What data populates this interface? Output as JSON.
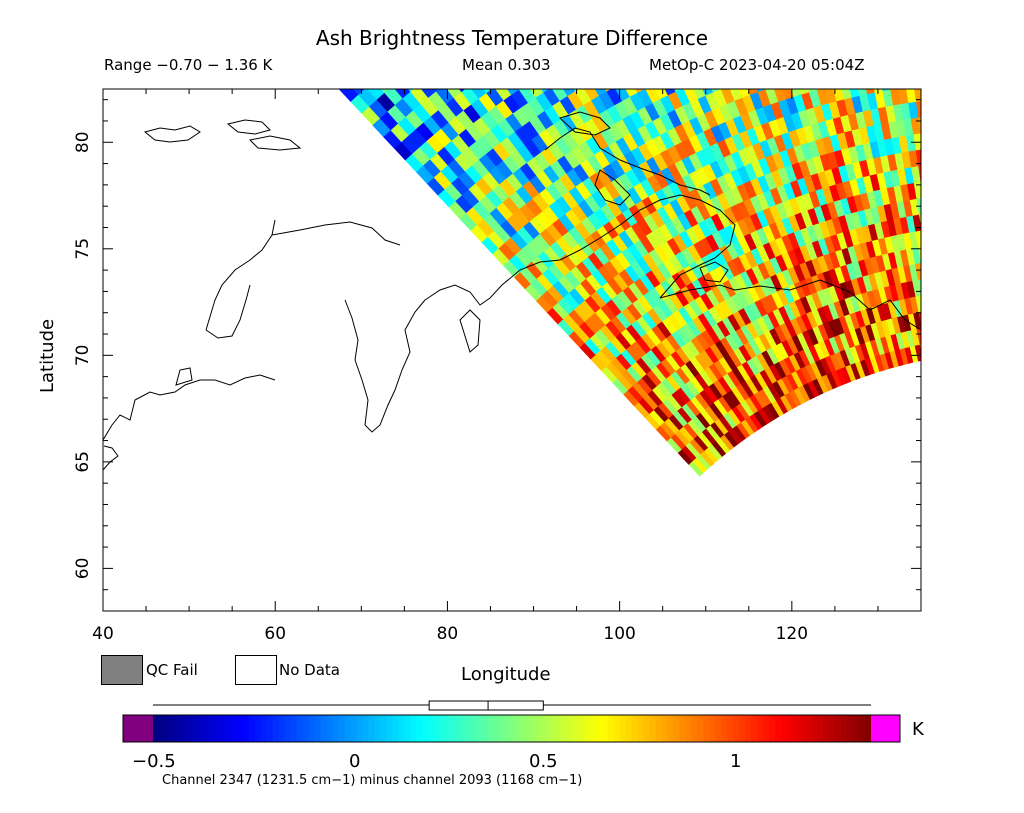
{
  "chart_data": {
    "type": "heatmap",
    "title": "Ash Brightness Temperature Difference",
    "subtitle_range": "Range −0.70 − 1.36 K",
    "subtitle_mean": "Mean 0.303",
    "subtitle_satellite": "MetOp-C 2023-04-20 05:04Z",
    "xlabel": "Longitude",
    "ylabel": "Latitude",
    "xlim": [
      40,
      135
    ],
    "ylim": [
      58,
      82.5
    ],
    "x_ticks": [
      "40",
      "60",
      "80",
      "100",
      "120"
    ],
    "y_ticks": [
      "60",
      "65",
      "70",
      "75",
      "80"
    ],
    "mean": 0.303,
    "range": [
      -0.7,
      1.36
    ],
    "grid": false,
    "colorbar": {
      "range": [
        -0.6,
        1.35
      ],
      "ticks": [
        "−0.5",
        "0",
        "0.5",
        "1"
      ],
      "unit": "K",
      "underflow_color": "#800080",
      "overflow_color": "#ff00ff",
      "box_plot": {
        "q1": 0.15,
        "median": 0.31,
        "q3": 0.46,
        "whisker_low": -0.6,
        "whisker_high": 1.35
      }
    },
    "legend": [
      {
        "label": "QC Fail",
        "color": "#808080"
      },
      {
        "label": "No Data",
        "color": "#ffffff"
      }
    ],
    "footer": "Channel 2347 (1231.5 cm−1) minus channel 2093 (1168 cm−1)"
  }
}
